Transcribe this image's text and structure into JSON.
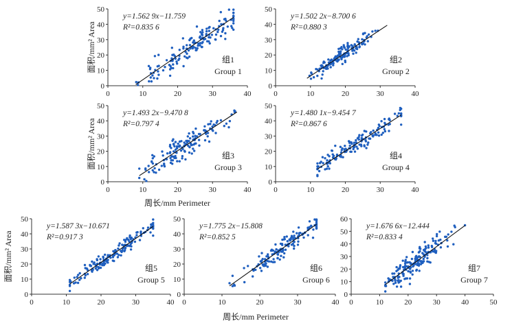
{
  "figure": {
    "shared_xlabel_row1": "周长/mm  Perimeter",
    "shared_xlabel_row2": "周长/mm  Perimeter"
  },
  "chart_data": [
    {
      "type": "scatter",
      "id": "g1",
      "group_cn": "组1",
      "group_en": "Group 1",
      "equation": "y=1.562 9x−11.759",
      "r2_label": "R²=0.835 6",
      "slope": 1.5629,
      "intercept": -11.759,
      "fit_x_range": [
        8,
        36
      ],
      "xlim": [
        0,
        40
      ],
      "ylim": [
        0,
        50
      ],
      "xticks": [
        "0",
        "10",
        "20",
        "30",
        "40"
      ],
      "yticks": [
        "0",
        "10",
        "20",
        "30",
        "40",
        "50"
      ],
      "ylabel": "面积/mm²  Area",
      "xlabel": "",
      "noise": 4.2,
      "seed": 11,
      "n": 150,
      "x_centers": [
        18,
        24,
        29
      ],
      "x_spread": 6
    },
    {
      "type": "scatter",
      "id": "g2",
      "group_cn": "组2",
      "group_en": "Group 2",
      "equation": "y=1.502 2x−8.700 6",
      "r2_label": "R²=0.880 3",
      "slope": 1.5022,
      "intercept": -8.7006,
      "fit_x_range": [
        9,
        32
      ],
      "xlim": [
        0,
        40
      ],
      "ylim": [
        0,
        50
      ],
      "xticks": [
        "0",
        "10",
        "20",
        "30",
        "40"
      ],
      "yticks": [
        "0",
        "10",
        "20",
        "30",
        "40",
        "50"
      ],
      "ylabel": "",
      "xlabel": "",
      "noise": 2.2,
      "seed": 23,
      "n": 150,
      "x_centers": [
        17,
        19,
        22
      ],
      "x_spread": 3.5
    },
    {
      "type": "scatter",
      "id": "g3",
      "group_cn": "组3",
      "group_en": "Group 3",
      "equation": "y=1.493 2x−9.470 8",
      "r2_label": "R²=0.797 4",
      "slope": 1.4932,
      "intercept": -9.4708,
      "fit_x_range": [
        9,
        37
      ],
      "xlim": [
        0,
        40
      ],
      "ylim": [
        0,
        50
      ],
      "xticks": [
        "0",
        "10",
        "20",
        "30",
        "40"
      ],
      "yticks": [
        "0",
        "10",
        "20",
        "30",
        "40",
        "50"
      ],
      "ylabel": "面积/mm²  Area",
      "xlabel": "",
      "noise": 3.8,
      "seed": 37,
      "n": 150,
      "x_centers": [
        16,
        20,
        26
      ],
      "x_spread": 5
    },
    {
      "type": "scatter",
      "id": "g4",
      "group_cn": "组4",
      "group_en": "Group 4",
      "equation": "y=1.480 1x−9.454 7",
      "r2_label": "R²=0.867 6",
      "slope": 1.4801,
      "intercept": -9.4547,
      "fit_x_range": [
        12,
        36
      ],
      "xlim": [
        0,
        40
      ],
      "ylim": [
        0,
        50
      ],
      "xticks": [
        "0",
        "10",
        "20",
        "30",
        "40"
      ],
      "yticks": [
        "0",
        "10",
        "20",
        "30",
        "40",
        "50"
      ],
      "ylabel": "",
      "xlabel": "",
      "noise": 3.2,
      "seed": 41,
      "n": 150,
      "x_centers": [
        17,
        24,
        29
      ],
      "x_spread": 5
    },
    {
      "type": "scatter",
      "id": "g5",
      "group_cn": "组5",
      "group_en": "Group 5",
      "equation": "y=1.587 3x−10.671",
      "r2_label": "R²=0.917 3",
      "slope": 1.5873,
      "intercept": -10.671,
      "fit_x_range": [
        11,
        35
      ],
      "xlim": [
        0,
        40
      ],
      "ylim": [
        0,
        50
      ],
      "xticks": [
        "0",
        "10",
        "20",
        "30",
        "40"
      ],
      "yticks": [
        "0",
        "10",
        "20",
        "30",
        "40",
        "50"
      ],
      "ylabel": "面积/mm²  Area",
      "xlabel": "",
      "noise": 2.6,
      "seed": 53,
      "n": 160,
      "x_centers": [
        17,
        24,
        29
      ],
      "x_spread": 5.5
    },
    {
      "type": "scatter",
      "id": "g6",
      "group_cn": "组6",
      "group_en": "Group 6",
      "equation": "y=1.775 2x−15.808",
      "r2_label": "R²=0.852 5",
      "slope": 1.7752,
      "intercept": -15.808,
      "fit_x_range": [
        12,
        35
      ],
      "xlim": [
        0,
        40
      ],
      "ylim": [
        0,
        50
      ],
      "xticks": [
        "0",
        "10",
        "20",
        "30",
        "40"
      ],
      "yticks": [
        "0",
        "10",
        "20",
        "30",
        "40",
        "50"
      ],
      "ylabel": "",
      "xlabel": "",
      "noise": 3.0,
      "seed": 67,
      "n": 150,
      "x_centers": [
        22,
        26,
        29
      ],
      "x_spread": 4.5
    },
    {
      "type": "scatter",
      "id": "g7",
      "group_cn": "组7",
      "group_en": "Group 7",
      "equation": "y=1.676 6x−12.444",
      "r2_label": "R²=0.833 4",
      "slope": 1.6766,
      "intercept": -12.444,
      "fit_x_range": [
        12,
        40
      ],
      "xlim": [
        0,
        50
      ],
      "ylim": [
        0,
        60
      ],
      "xticks": [
        "0",
        "10",
        "20",
        "30",
        "40",
        "50"
      ],
      "yticks": [
        "0",
        "10",
        "20",
        "30",
        "40",
        "50",
        "60"
      ],
      "ylabel": "",
      "xlabel": "",
      "noise": 4.5,
      "seed": 79,
      "n": 180,
      "x_centers": [
        18,
        21,
        28
      ],
      "x_spread": 4.5
    }
  ]
}
